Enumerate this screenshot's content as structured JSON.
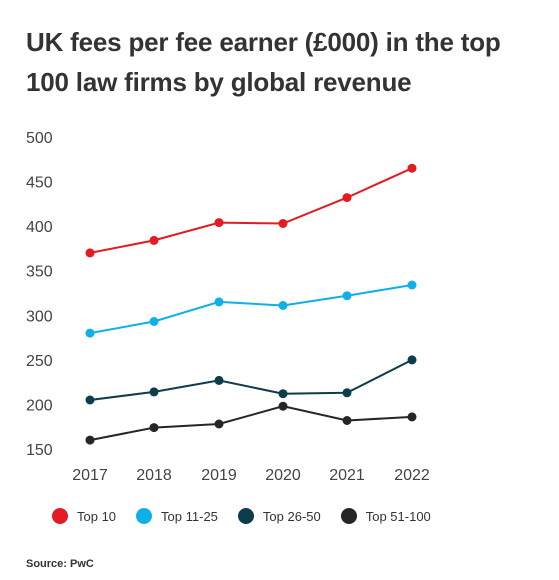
{
  "title": "UK fees per fee earner (£000) in the top 100 law firms by global revenue",
  "source": "Source: PwC",
  "chart_data": {
    "type": "line",
    "title": "UK fees per fee earner (£000) in the top 100 law firms by global revenue",
    "x": [
      "2017",
      "2018",
      "2019",
      "2020",
      "2021",
      "2022"
    ],
    "ylim": [
      150,
      500
    ],
    "yticks": [
      500,
      450,
      400,
      350,
      300,
      250,
      200,
      150
    ],
    "grid": false,
    "legend_position": "bottom",
    "series": [
      {
        "name": "Top 10",
        "color": "#e31b23",
        "values": [
          370,
          384,
          404,
          403,
          432,
          465
        ]
      },
      {
        "name": "Top 11-25",
        "color": "#0fb0ea",
        "values": [
          280,
          293,
          315,
          311,
          322,
          334
        ]
      },
      {
        "name": "Top 26-50",
        "color": "#0d3c4d",
        "values": [
          205,
          214,
          227,
          212,
          213,
          250
        ]
      },
      {
        "name": "Top 51-100",
        "color": "#262626",
        "values": [
          160,
          174,
          178,
          198,
          182,
          186
        ]
      }
    ]
  }
}
